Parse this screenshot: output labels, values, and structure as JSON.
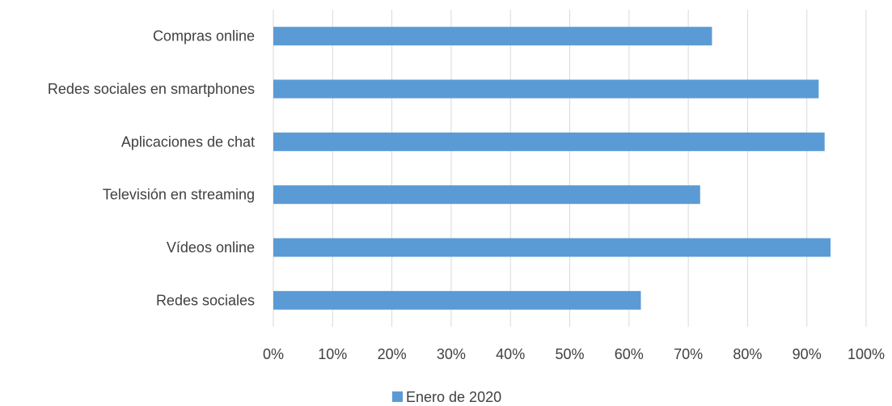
{
  "chart_data": {
    "type": "bar",
    "orientation": "horizontal",
    "categories": [
      "Compras online",
      "Redes sociales en smartphones",
      "Aplicaciones de chat",
      "Televisión en streaming",
      "Vídeos online",
      "Redes sociales"
    ],
    "series": [
      {
        "name": "Enero de 2020",
        "values": [
          74,
          92,
          93,
          72,
          94,
          62
        ],
        "color": "#5b9bd5"
      }
    ],
    "xlim": [
      0,
      100
    ],
    "x_ticks": [
      "0%",
      "10%",
      "20%",
      "30%",
      "40%",
      "50%",
      "60%",
      "70%",
      "80%",
      "90%",
      "100%"
    ],
    "grid": "vertical",
    "legend_position": "bottom",
    "title": "",
    "xlabel": "",
    "ylabel": ""
  }
}
